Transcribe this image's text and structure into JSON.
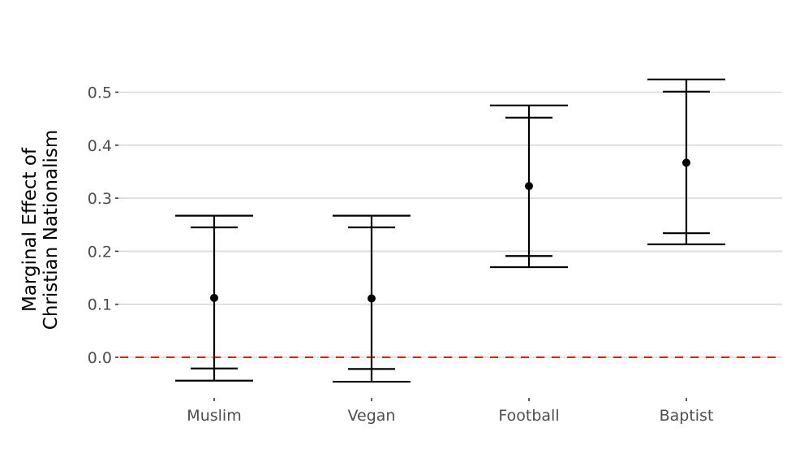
{
  "chart_data": {
    "type": "errorbar",
    "title": "",
    "xlabel": "",
    "ylabel_lines": [
      "Marginal Effect of",
      "Christian Nationalism"
    ],
    "ylim": [
      -0.06,
      0.54
    ],
    "yticks": [
      0.0,
      0.1,
      0.2,
      0.3,
      0.4,
      0.5
    ],
    "ytick_labels": [
      "0.0",
      "0.1",
      "0.2",
      "0.3",
      "0.4",
      "0.5"
    ],
    "grid": "horizontal major",
    "reference_line": {
      "y": 0.0,
      "style": "dashed",
      "color": "#ff0000"
    },
    "categories": [
      "Muslim",
      "Vegan",
      "Football",
      "Baptist"
    ],
    "series": [
      {
        "name": "Marginal effect",
        "estimate": [
          0.112,
          0.111,
          0.323,
          0.367
        ],
        "ci_inner_low": [
          -0.021,
          -0.022,
          0.191,
          0.234
        ],
        "ci_inner_high": [
          0.245,
          0.245,
          0.452,
          0.501
        ],
        "ci_outer_low": [
          -0.044,
          -0.046,
          0.17,
          0.213
        ],
        "ci_outer_high": [
          0.267,
          0.267,
          0.475,
          0.524
        ]
      }
    ],
    "colors": {
      "marks": "#000000",
      "grid": "#d9d9d9",
      "reference": "#ff0000",
      "tick_text": "#4d4d4d"
    }
  }
}
